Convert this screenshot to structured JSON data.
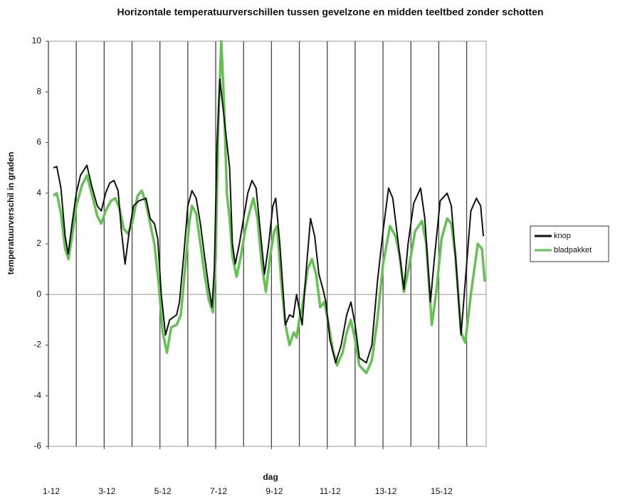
{
  "chart_data": {
    "type": "line",
    "title": "Horizontale temperatuurverschillen tussen gevelzone en midden teeltbed zonder schotten",
    "xlabel": "dag",
    "ylabel": "temperatuurverschil in graden",
    "xlim": [
      0,
      15.7
    ],
    "xticks": [
      {
        "value": 0,
        "label": "1-12"
      },
      {
        "value": 2,
        "label": "3-12"
      },
      {
        "value": 4,
        "label": "5-12"
      },
      {
        "value": 6,
        "label": "7-12"
      },
      {
        "value": 8,
        "label": "9-12"
      },
      {
        "value": 10,
        "label": "11-12"
      },
      {
        "value": 12,
        "label": "13-12"
      },
      {
        "value": 14,
        "label": "15-12"
      }
    ],
    "xgrid": [
      1,
      2,
      3,
      4,
      5,
      6,
      7,
      8,
      9,
      10,
      11,
      12,
      13,
      14,
      15
    ],
    "ylim": [
      -6,
      10
    ],
    "yticks": [
      -6,
      -4,
      -2,
      0,
      2,
      4,
      6,
      8,
      10
    ],
    "legend": "right",
    "series": [
      {
        "name": "knop",
        "color": "#111111",
        "x": [
          0.18,
          0.3,
          0.45,
          0.6,
          0.71,
          0.85,
          1.0,
          1.15,
          1.38,
          1.55,
          1.75,
          1.9,
          2.05,
          2.2,
          2.35,
          2.5,
          2.62,
          2.75,
          2.9,
          3.05,
          3.25,
          3.5,
          3.65,
          3.8,
          3.92,
          4.05,
          4.2,
          4.35,
          4.6,
          4.7,
          4.85,
          5.0,
          5.15,
          5.3,
          5.45,
          5.6,
          5.75,
          5.87,
          5.95,
          6.05,
          6.15,
          6.25,
          6.35,
          6.5,
          6.6,
          6.7,
          6.85,
          7.0,
          7.15,
          7.3,
          7.45,
          7.6,
          7.75,
          7.9,
          8.05,
          8.15,
          8.3,
          8.5,
          8.65,
          8.78,
          8.9,
          9.0,
          9.1,
          9.25,
          9.4,
          9.55,
          9.7,
          9.85,
          9.95,
          10.1,
          10.3,
          10.5,
          10.7,
          10.85,
          11.0,
          11.15,
          11.4,
          11.6,
          11.8,
          12.0,
          12.2,
          12.35,
          12.55,
          12.75,
          12.9,
          13.1,
          13.35,
          13.5,
          13.7,
          13.85,
          14.05,
          14.3,
          14.45,
          14.6,
          14.8,
          14.95,
          15.15,
          15.35,
          15.5,
          15.6
        ],
        "values": [
          5.0,
          5.05,
          4.2,
          2.3,
          1.6,
          2.8,
          4.0,
          4.7,
          5.1,
          4.3,
          3.5,
          3.3,
          4.0,
          4.4,
          4.5,
          4.1,
          2.5,
          1.2,
          2.5,
          3.5,
          3.7,
          3.8,
          3.0,
          2.8,
          2.2,
          0.0,
          -1.6,
          -1.0,
          -0.8,
          -0.3,
          1.5,
          3.5,
          4.1,
          3.8,
          2.8,
          1.5,
          0.3,
          -0.5,
          1.0,
          6.0,
          8.5,
          7.5,
          6.5,
          5.0,
          2.0,
          1.2,
          2.0,
          3.0,
          4.0,
          4.5,
          4.2,
          2.5,
          0.8,
          2.0,
          3.5,
          3.8,
          2.0,
          -1.2,
          -0.8,
          -0.9,
          0.0,
          -0.6,
          -1.2,
          1.0,
          3.0,
          2.3,
          0.8,
          0.2,
          -0.3,
          -1.8,
          -2.7,
          -2.0,
          -0.8,
          -0.3,
          -1.2,
          -2.5,
          -2.7,
          -2.0,
          0.5,
          2.5,
          4.2,
          3.8,
          2.0,
          0.2,
          2.0,
          3.6,
          4.2,
          3.0,
          -0.3,
          1.5,
          3.7,
          4.0,
          3.5,
          1.5,
          -1.6,
          0.5,
          3.3,
          3.8,
          3.5,
          2.3
        ]
      },
      {
        "name": "bladpakket",
        "color": "#66c155",
        "x": [
          0.18,
          0.3,
          0.45,
          0.6,
          0.72,
          0.85,
          1.0,
          1.2,
          1.38,
          1.55,
          1.75,
          1.9,
          2.05,
          2.25,
          2.4,
          2.55,
          2.7,
          2.85,
          3.0,
          3.2,
          3.35,
          3.5,
          3.65,
          3.8,
          3.95,
          4.1,
          4.25,
          4.4,
          4.6,
          4.75,
          4.9,
          5.05,
          5.15,
          5.3,
          5.45,
          5.6,
          5.75,
          5.9,
          6.0,
          6.1,
          6.2,
          6.3,
          6.4,
          6.5,
          6.6,
          6.75,
          6.9,
          7.05,
          7.2,
          7.35,
          7.5,
          7.65,
          7.8,
          7.95,
          8.1,
          8.2,
          8.35,
          8.5,
          8.65,
          8.8,
          8.9,
          9.0,
          9.1,
          9.3,
          9.45,
          9.6,
          9.75,
          9.9,
          10.05,
          10.2,
          10.35,
          10.55,
          10.7,
          10.85,
          11.0,
          11.15,
          11.4,
          11.6,
          11.8,
          12.0,
          12.25,
          12.45,
          12.6,
          12.75,
          12.95,
          13.15,
          13.4,
          13.55,
          13.75,
          13.9,
          14.1,
          14.3,
          14.45,
          14.6,
          14.8,
          14.95,
          15.15,
          15.4,
          15.55,
          15.65
        ],
        "values": [
          3.9,
          4.0,
          3.2,
          1.8,
          1.4,
          2.3,
          3.5,
          4.3,
          4.7,
          4.0,
          3.1,
          2.8,
          3.3,
          3.7,
          3.8,
          3.4,
          2.6,
          2.4,
          2.8,
          3.9,
          4.1,
          3.6,
          2.8,
          2.0,
          0.5,
          -1.5,
          -2.3,
          -1.3,
          -1.2,
          -0.8,
          1.0,
          2.8,
          3.5,
          3.2,
          2.0,
          0.8,
          -0.2,
          -0.7,
          1.5,
          7.0,
          10.0,
          7.5,
          4.0,
          3.0,
          1.5,
          0.7,
          1.5,
          2.5,
          3.2,
          3.8,
          3.0,
          1.2,
          0.1,
          1.5,
          2.5,
          2.7,
          0.5,
          -1.2,
          -2.0,
          -1.5,
          -1.7,
          -1.0,
          -0.5,
          1.0,
          1.4,
          0.8,
          -0.5,
          -0.3,
          -1.2,
          -2.2,
          -2.8,
          -2.3,
          -1.5,
          -1.0,
          -1.8,
          -2.8,
          -3.1,
          -2.6,
          -1.0,
          1.2,
          2.7,
          2.3,
          1.5,
          0.1,
          1.2,
          2.5,
          2.9,
          2.0,
          -1.2,
          0.0,
          2.2,
          3.0,
          2.8,
          1.5,
          -1.5,
          -1.9,
          0.0,
          2.0,
          1.8,
          0.5
        ]
      }
    ]
  }
}
